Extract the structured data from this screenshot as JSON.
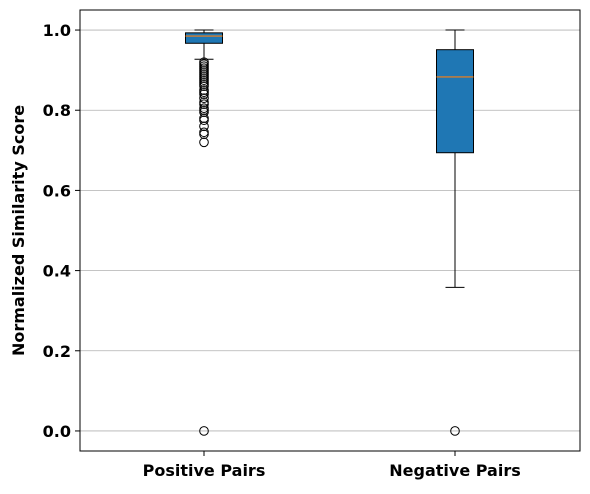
{
  "chart_data": {
    "type": "box",
    "title": "",
    "xlabel": "",
    "ylabel": "Normalized Similarity Score",
    "ylim": [
      -0.05,
      1.05
    ],
    "yticks": [
      "0.0",
      "0.2",
      "0.4",
      "0.6",
      "0.8",
      "1.0"
    ],
    "grid": "y",
    "legend": "none",
    "box_color": "#1f77b4",
    "median_color": "#ff7f0e",
    "categories": [
      "Positive Pairs",
      "Negative Pairs"
    ],
    "series": [
      {
        "category": "Positive Pairs",
        "whisker_low": 0.927,
        "q1": 0.967,
        "median": 0.985,
        "q3": 0.993,
        "whisker_high": 1.0,
        "outliers": [
          0.0,
          0.72,
          0.74,
          0.745,
          0.76,
          0.775,
          0.78,
          0.795,
          0.8,
          0.805,
          0.815,
          0.82,
          0.83,
          0.84,
          0.845,
          0.85,
          0.86,
          0.865,
          0.87,
          0.875,
          0.88,
          0.885,
          0.89,
          0.895,
          0.9,
          0.905,
          0.91,
          0.915,
          0.92
        ]
      },
      {
        "category": "Negative Pairs",
        "whisker_low": 0.358,
        "q1": 0.694,
        "median": 0.883,
        "q3": 0.951,
        "whisker_high": 1.0,
        "outliers": [
          0.0
        ]
      }
    ]
  }
}
